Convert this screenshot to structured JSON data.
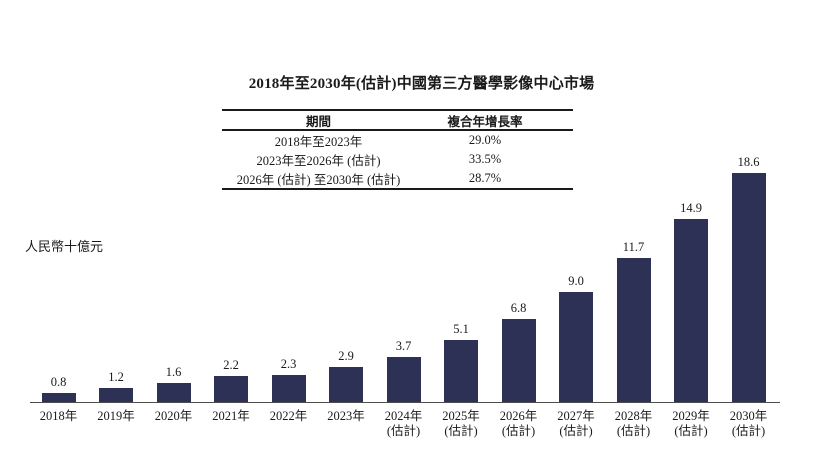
{
  "title": "2018年至2030年(估計)中國第三方醫學影像中心市場",
  "cagr_table": {
    "headers": [
      "期間",
      "複合年增長率"
    ],
    "rows": [
      {
        "period": "2018年至2023年",
        "cagr": "29.0%"
      },
      {
        "period": "2023年至2026年 (估計)",
        "cagr": "33.5%"
      },
      {
        "period": "2026年 (估計) 至2030年 (估計)",
        "cagr": "28.7%"
      }
    ]
  },
  "chart_data": {
    "type": "bar",
    "title": "2018年至2030年(估計)中國第三方醫學影像中心市場",
    "ylabel": "人民幣十億元",
    "xlabel": "",
    "categories": [
      "2018年",
      "2019年",
      "2020年",
      "2021年",
      "2022年",
      "2023年",
      "2024年",
      "2025年",
      "2026年",
      "2027年",
      "2028年",
      "2029年",
      "2030年"
    ],
    "estimate_flags": [
      false,
      false,
      false,
      false,
      false,
      false,
      true,
      true,
      true,
      true,
      true,
      true,
      true
    ],
    "estimate_label": "(估計)",
    "values": [
      0.8,
      1.2,
      1.6,
      2.2,
      2.3,
      2.9,
      3.7,
      5.1,
      6.8,
      9.0,
      11.7,
      14.9,
      18.6
    ],
    "value_labels": [
      "0.8",
      "1.2",
      "1.6",
      "2.2",
      "2.3",
      "2.9",
      "3.7",
      "5.1",
      "6.8",
      "9.0",
      "11.7",
      "14.9",
      "18.6"
    ],
    "ylim": [
      0,
      20
    ],
    "grid": false,
    "legend": "none",
    "bar_color": "#2d3156"
  },
  "colors": {
    "bar": "#2d3156",
    "text": "#1a1a1a",
    "axis_line": "#4d4d4d",
    "background": "#ffffff"
  }
}
